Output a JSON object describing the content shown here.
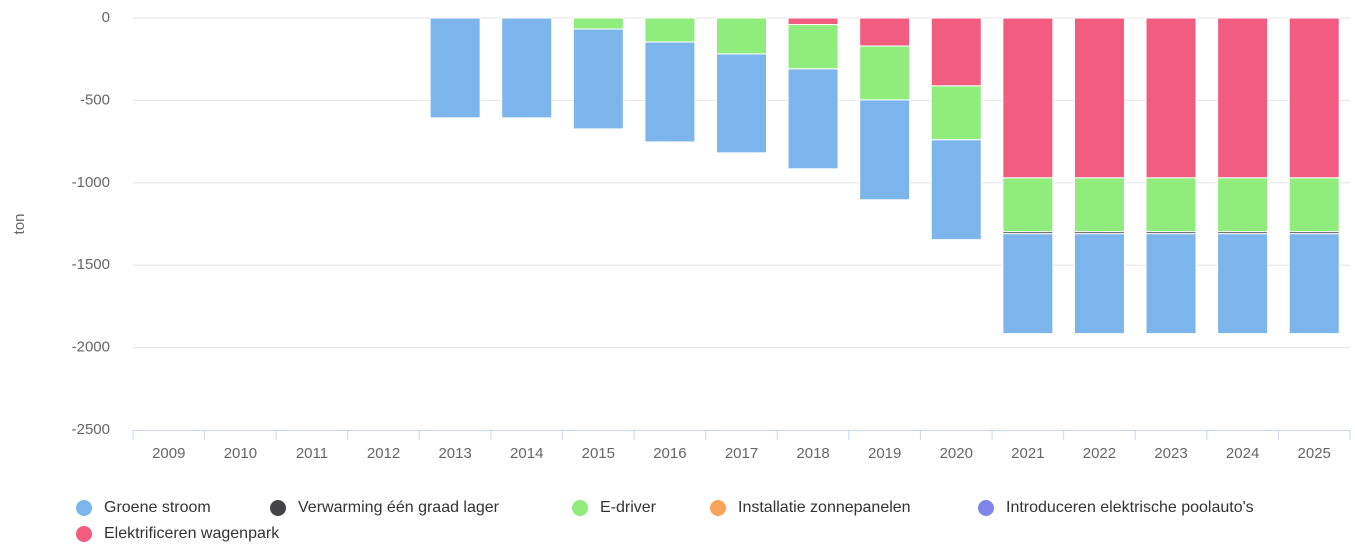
{
  "chart_data": {
    "type": "bar",
    "stacked": true,
    "y_label": "ton",
    "categories": [
      "2009",
      "2010",
      "2011",
      "2012",
      "2013",
      "2014",
      "2015",
      "2016",
      "2017",
      "2018",
      "2019",
      "2020",
      "2021",
      "2022",
      "2023",
      "2024",
      "2025"
    ],
    "series": [
      {
        "name": "Groene stroom",
        "color": "#7cb5ec",
        "values": [
          null,
          null,
          null,
          null,
          -606,
          -606,
          -606,
          -606,
          -600,
          -606,
          -606,
          -606,
          -606,
          -606,
          -606,
          -606,
          -606
        ]
      },
      {
        "name": "Verwarming één graad lager",
        "color": "#434348",
        "values": [
          null,
          null,
          null,
          null,
          null,
          null,
          null,
          null,
          null,
          null,
          null,
          null,
          -12,
          -12,
          -12,
          -12,
          -12
        ]
      },
      {
        "name": "E-driver",
        "color": "#90ed7d",
        "values": [
          null,
          null,
          null,
          null,
          null,
          null,
          -67,
          -146,
          -218,
          -269,
          -327,
          -327,
          -327,
          -327,
          -327,
          -327,
          -327
        ]
      },
      {
        "name": "Installatie zonnepanelen",
        "color": "#f7a35c",
        "values": [
          null,
          null,
          null,
          null,
          null,
          null,
          null,
          null,
          null,
          null,
          null,
          null,
          null,
          null,
          null,
          null,
          null
        ]
      },
      {
        "name": "Introduceren elektrische poolauto's",
        "color": "#8085e9",
        "values": [
          null,
          null,
          null,
          null,
          null,
          null,
          null,
          null,
          null,
          null,
          null,
          null,
          null,
          null,
          null,
          null,
          null
        ]
      },
      {
        "name": "Elektrificeren wagenpark",
        "color": "#f15c80",
        "values": [
          null,
          null,
          null,
          null,
          null,
          null,
          null,
          null,
          null,
          -40,
          -170,
          -412,
          -970,
          -970,
          -970,
          -970,
          -970
        ]
      }
    ],
    "ylim": [
      -2500,
      0
    ],
    "yticks": [
      -2500,
      -2000,
      -1500,
      -1000,
      -500,
      0
    ],
    "grid": true
  }
}
